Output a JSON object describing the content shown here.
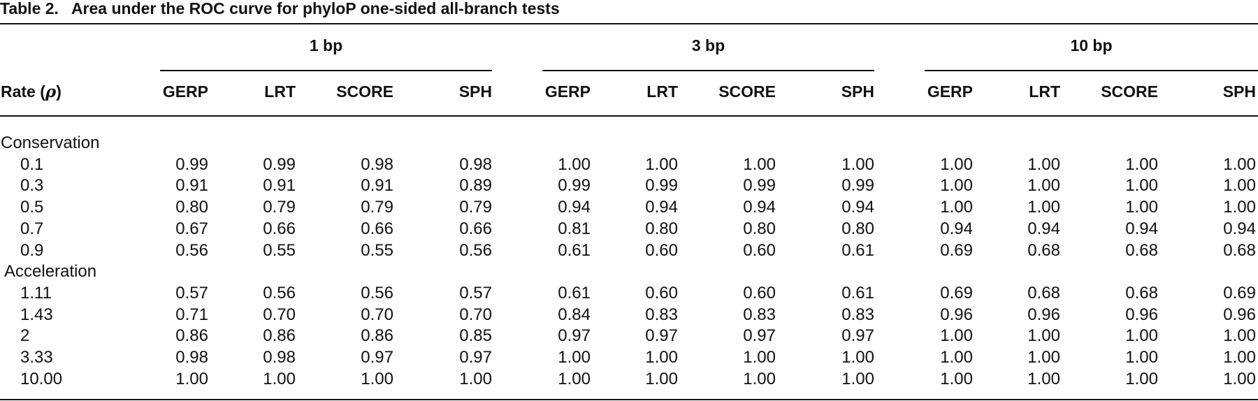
{
  "caption": {
    "label": "Table 2.",
    "title": "Area under the ROC curve for phyloP one-sided all-branch tests"
  },
  "header": {
    "row_label": "Rate (",
    "row_symbol": "ρ",
    "row_close": ")",
    "groups": [
      "1 bp",
      "3 bp",
      "10 bp"
    ],
    "columns": [
      "GERP",
      "LRT",
      "SCORE",
      "SPH"
    ]
  },
  "sections": [
    {
      "name": "Conservation",
      "rows": [
        {
          "rate": "0.1",
          "values": [
            "0.99",
            "0.99",
            "0.98",
            "0.98",
            "1.00",
            "1.00",
            "1.00",
            "1.00",
            "1.00",
            "1.00",
            "1.00",
            "1.00"
          ]
        },
        {
          "rate": "0.3",
          "values": [
            "0.91",
            "0.91",
            "0.91",
            "0.89",
            "0.99",
            "0.99",
            "0.99",
            "0.99",
            "1.00",
            "1.00",
            "1.00",
            "1.00"
          ]
        },
        {
          "rate": "0.5",
          "values": [
            "0.80",
            "0.79",
            "0.79",
            "0.79",
            "0.94",
            "0.94",
            "0.94",
            "0.94",
            "1.00",
            "1.00",
            "1.00",
            "1.00"
          ]
        },
        {
          "rate": "0.7",
          "values": [
            "0.67",
            "0.66",
            "0.66",
            "0.66",
            "0.81",
            "0.80",
            "0.80",
            "0.80",
            "0.94",
            "0.94",
            "0.94",
            "0.94"
          ]
        },
        {
          "rate": "0.9",
          "values": [
            "0.56",
            "0.55",
            "0.55",
            "0.56",
            "0.61",
            "0.60",
            "0.60",
            "0.61",
            "0.69",
            "0.68",
            "0.68",
            "0.68"
          ]
        }
      ]
    },
    {
      "name": "Acceleration",
      "rows": [
        {
          "rate": "1.11",
          "values": [
            "0.57",
            "0.56",
            "0.56",
            "0.57",
            "0.61",
            "0.60",
            "0.60",
            "0.61",
            "0.69",
            "0.68",
            "0.68",
            "0.69"
          ]
        },
        {
          "rate": "1.43",
          "values": [
            "0.71",
            "0.70",
            "0.70",
            "0.70",
            "0.84",
            "0.83",
            "0.83",
            "0.83",
            "0.96",
            "0.96",
            "0.96",
            "0.96"
          ]
        },
        {
          "rate": "2",
          "values": [
            "0.86",
            "0.86",
            "0.86",
            "0.85",
            "0.97",
            "0.97",
            "0.97",
            "0.97",
            "1.00",
            "1.00",
            "1.00",
            "1.00"
          ]
        },
        {
          "rate": "3.33",
          "values": [
            "0.98",
            "0.98",
            "0.97",
            "0.97",
            "1.00",
            "1.00",
            "1.00",
            "1.00",
            "1.00",
            "1.00",
            "1.00",
            "1.00"
          ]
        },
        {
          "rate": "10.00",
          "values": [
            "1.00",
            "1.00",
            "1.00",
            "1.00",
            "1.00",
            "1.00",
            "1.00",
            "1.00",
            "1.00",
            "1.00",
            "1.00",
            "1.00"
          ]
        }
      ]
    }
  ]
}
